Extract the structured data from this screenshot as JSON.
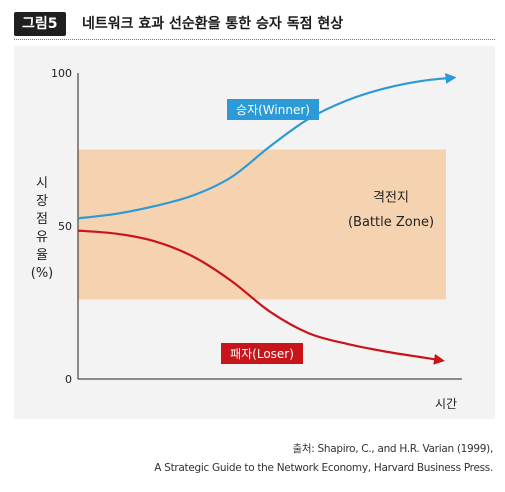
{
  "figure": {
    "badge": "그림5",
    "title": "네트워크 효과 선순환을 통한 승자 독점 현상"
  },
  "colors": {
    "winner": "#2b9ad6",
    "loser": "#c8151b",
    "battle_zone": "#f6d3b0",
    "axis": "#222222"
  },
  "chart_data": {
    "type": "line",
    "ylabel": "시장점유율(%)",
    "ylabel_chars": [
      "시",
      "장",
      "점",
      "유",
      "율",
      "(%)"
    ],
    "xlabel": "시간",
    "y_ticks": [
      0,
      50,
      100
    ],
    "ylim": [
      0,
      100
    ],
    "band": {
      "y_range": [
        26,
        75
      ],
      "label_line1": "격전지",
      "label_line2": "(Battle Zone)"
    },
    "series": [
      {
        "name": "승자(Winner)",
        "points": [
          [
            0.0,
            52.5
          ],
          [
            0.1,
            54
          ],
          [
            0.2,
            56.5
          ],
          [
            0.3,
            60
          ],
          [
            0.4,
            66
          ],
          [
            0.5,
            76
          ],
          [
            0.6,
            85
          ],
          [
            0.7,
            91
          ],
          [
            0.8,
            95
          ],
          [
            0.9,
            97.5
          ],
          [
            0.98,
            98.5
          ]
        ]
      },
      {
        "name": "패자(Loser)",
        "points": [
          [
            0.0,
            48.5
          ],
          [
            0.1,
            47.5
          ],
          [
            0.2,
            45
          ],
          [
            0.3,
            40
          ],
          [
            0.4,
            32
          ],
          [
            0.5,
            22
          ],
          [
            0.6,
            15
          ],
          [
            0.7,
            11.5
          ],
          [
            0.8,
            9
          ],
          [
            0.9,
            7
          ],
          [
            0.95,
            6
          ]
        ]
      }
    ]
  },
  "source": {
    "line1": "출처: Shapiro, C., and H.R. Varian (1999),",
    "line2": "A Strategic Guide to the Network Economy, Harvard Business Press."
  }
}
